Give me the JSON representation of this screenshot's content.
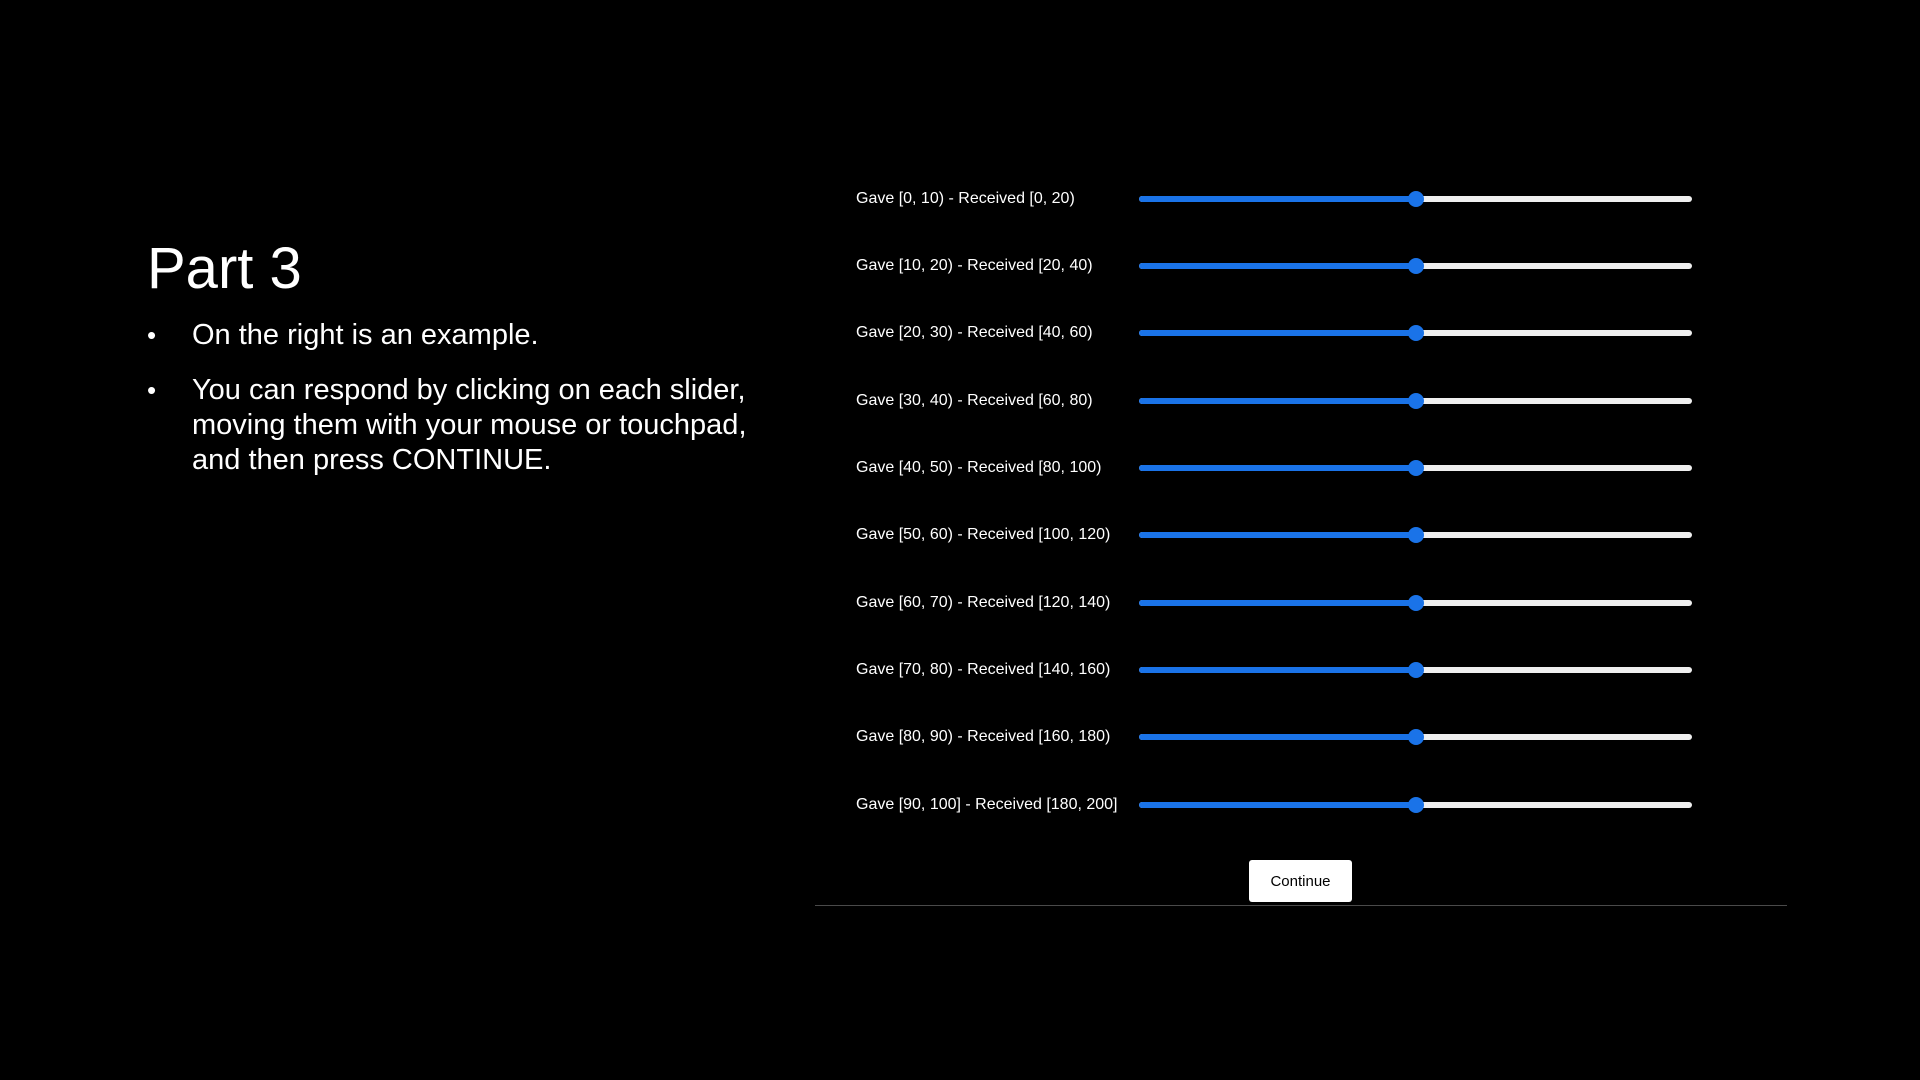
{
  "title": "Part 3",
  "bullets": [
    "On the right is an example.",
    "You can respond by clicking on each slider, moving them with your mouse or touchpad, and then press CONTINUE."
  ],
  "bullet_symbol": "•",
  "sliders": [
    {
      "label": "Gave [0, 10) - Received [0, 20)",
      "value": 0.5
    },
    {
      "label": "Gave [10, 20) - Received [20, 40)",
      "value": 0.5
    },
    {
      "label": "Gave [20, 30) - Received [40, 60)",
      "value": 0.5
    },
    {
      "label": "Gave [30, 40) - Received [60, 80)",
      "value": 0.5
    },
    {
      "label": "Gave [40, 50) - Received [80, 100)",
      "value": 0.5
    },
    {
      "label": "Gave [50, 60) - Received [100, 120)",
      "value": 0.5
    },
    {
      "label": "Gave [60, 70) - Received [120, 140)",
      "value": 0.5
    },
    {
      "label": "Gave [70, 80) - Received [140, 160)",
      "value": 0.5
    },
    {
      "label": "Gave [80, 90) - Received [160, 180)",
      "value": 0.5
    },
    {
      "label": "Gave [90, 100] - Received [180, 200]",
      "value": 0.5
    }
  ],
  "continue_label": "Continue",
  "colors": {
    "background": "#000000",
    "text": "#ffffff",
    "slider_accent": "#1a73e8",
    "slider_track": "#efefef",
    "button_bg": "#ffffff"
  }
}
